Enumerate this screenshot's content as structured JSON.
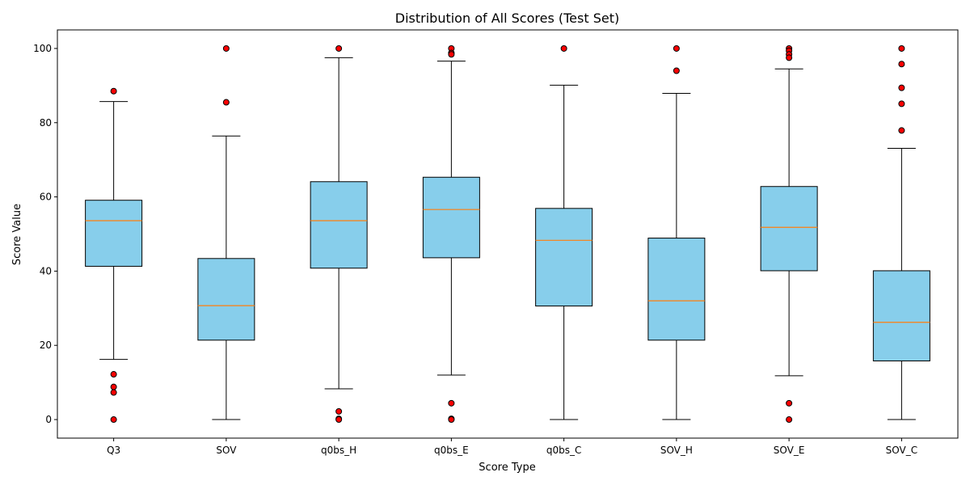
{
  "chart_data": {
    "type": "boxplot",
    "title": "Distribution of All Scores (Test Set)",
    "xlabel": "Score Type",
    "ylabel": "Score Value",
    "ylim": [
      -5,
      105
    ],
    "yticks": [
      0,
      20,
      40,
      60,
      80,
      100
    ],
    "grid": false,
    "colors": {
      "box_fill": "#87ceeb",
      "median": "#ff7f0e",
      "outlier_fill": "#ff0000",
      "edge": "#000000"
    },
    "categories": [
      "Q3",
      "SOV",
      "q0bs_H",
      "q0bs_E",
      "q0bs_C",
      "SOV_H",
      "SOV_E",
      "SOV_C"
    ],
    "boxes": [
      {
        "whisker_low": 16.2,
        "q1": 41.3,
        "median": 53.6,
        "q3": 59.1,
        "whisker_high": 85.7,
        "outliers": [
          88.5,
          12.2,
          8.8,
          7.3,
          0
        ]
      },
      {
        "whisker_low": 0,
        "q1": 21.4,
        "median": 30.7,
        "q3": 43.4,
        "whisker_high": 76.4,
        "outliers": [
          100,
          85.5
        ]
      },
      {
        "whisker_low": 8.3,
        "q1": 40.8,
        "median": 53.6,
        "q3": 64.1,
        "whisker_high": 97.5,
        "outliers": [
          100,
          2.2,
          0.2,
          0
        ]
      },
      {
        "whisker_low": 12.0,
        "q1": 43.6,
        "median": 56.6,
        "q3": 65.3,
        "whisker_high": 96.6,
        "outliers": [
          100,
          98.8,
          98.4,
          4.4,
          0.2,
          0
        ]
      },
      {
        "whisker_low": 0,
        "q1": 30.6,
        "median": 48.3,
        "q3": 56.9,
        "whisker_high": 90.1,
        "outliers": [
          100
        ]
      },
      {
        "whisker_low": 0,
        "q1": 21.4,
        "median": 32.0,
        "q3": 48.9,
        "whisker_high": 87.9,
        "outliers": [
          100,
          94.0
        ]
      },
      {
        "whisker_low": 11.8,
        "q1": 40.1,
        "median": 51.8,
        "q3": 62.8,
        "whisker_high": 94.5,
        "outliers": [
          100,
          99.4,
          98.4,
          97.5,
          4.4,
          0
        ]
      },
      {
        "whisker_low": 0,
        "q1": 15.8,
        "median": 26.2,
        "q3": 40.1,
        "whisker_high": 73.1,
        "outliers": [
          100,
          95.8,
          89.4,
          85.1,
          77.9
        ]
      }
    ]
  }
}
